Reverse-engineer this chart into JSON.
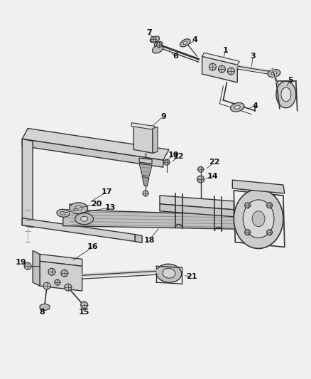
{
  "background_color": "#f0f0f0",
  "line_color": "#333333",
  "label_color": "#111111",
  "figsize": [
    4.38,
    5.33
  ],
  "dpi": 100
}
